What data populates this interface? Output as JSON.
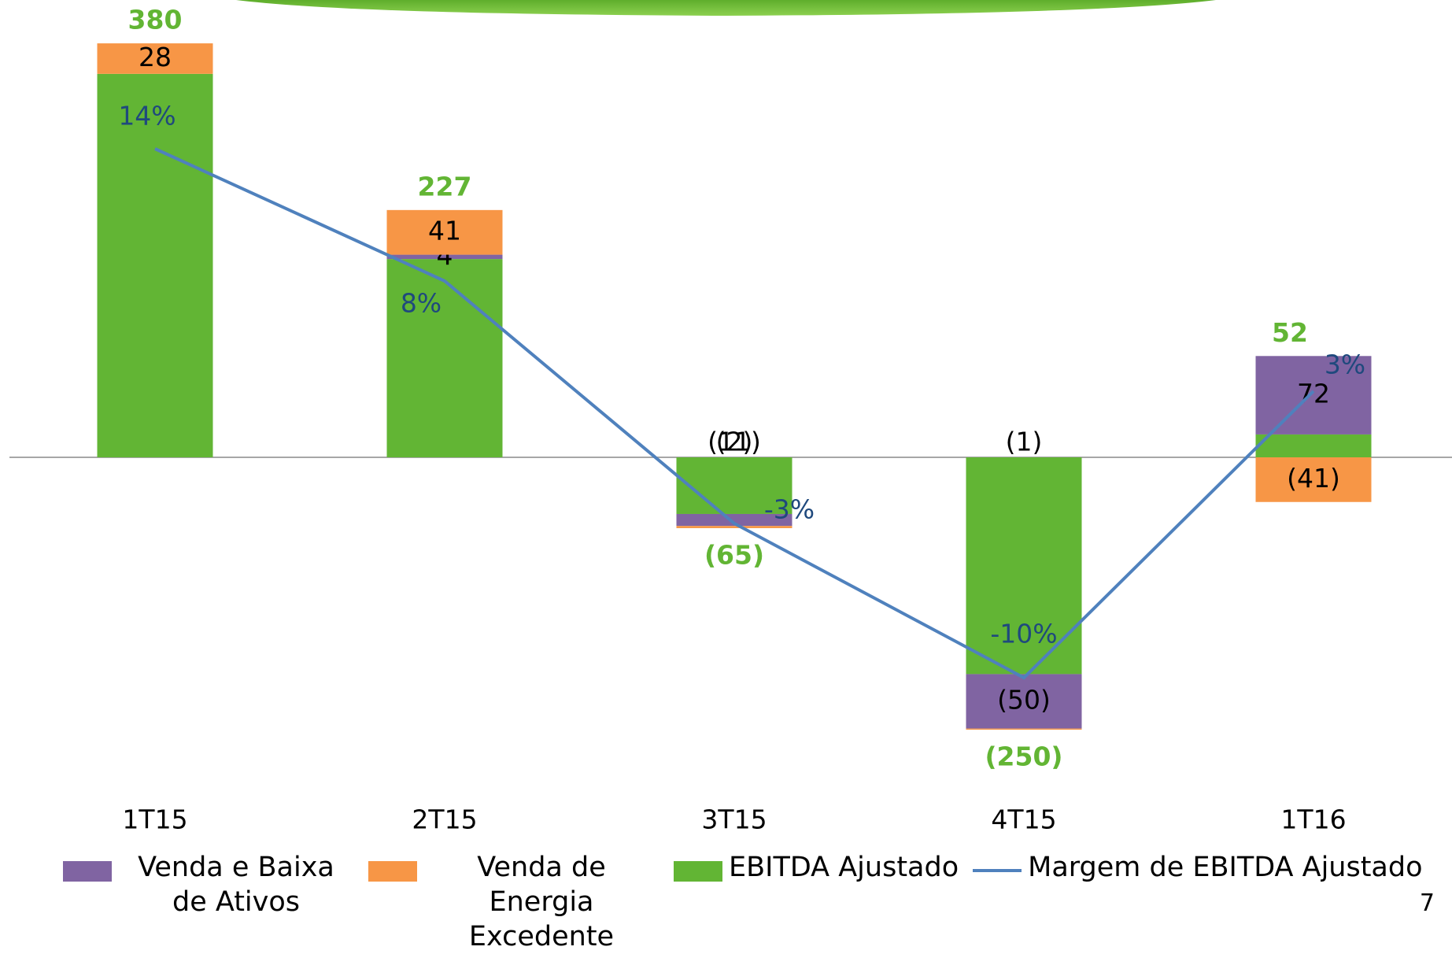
{
  "chart_data": {
    "type": "bar",
    "categories": [
      "1T15",
      "2T15",
      "3T15",
      "4T15",
      "1T16"
    ],
    "series": [
      {
        "name": "EBITDA Ajustado",
        "color": "#62b534",
        "values": [
          352,
          182,
          -52,
          -199,
          21
        ],
        "value_labels": [
          null,
          null,
          null,
          null,
          null
        ]
      },
      {
        "name": "Venda e Baixa de Ativos",
        "color": "#8064a2",
        "values": [
          0,
          4,
          -11,
          -50,
          72
        ],
        "value_labels": [
          null,
          "4",
          "(11)",
          "(50)",
          "72"
        ]
      },
      {
        "name": "Venda de Energia Excedente",
        "color": "#f79646",
        "values": [
          28,
          41,
          -2,
          -1,
          -41
        ],
        "value_labels": [
          "28",
          "41",
          "(2)",
          "(1)",
          "(41)"
        ]
      },
      {
        "name": "Margem de EBITDA Ajustado",
        "type": "line",
        "color": "#4f81bd",
        "values": [
          14,
          8,
          -3,
          -10,
          3
        ],
        "value_labels": [
          "14%",
          "8%",
          "-3%",
          "-10%",
          "3%"
        ]
      }
    ],
    "totals": [
      380,
      227,
      -65,
      -250,
      52
    ],
    "total_labels": [
      "380",
      "227",
      "(65)",
      "(250)",
      "52"
    ],
    "page_number": "7"
  }
}
